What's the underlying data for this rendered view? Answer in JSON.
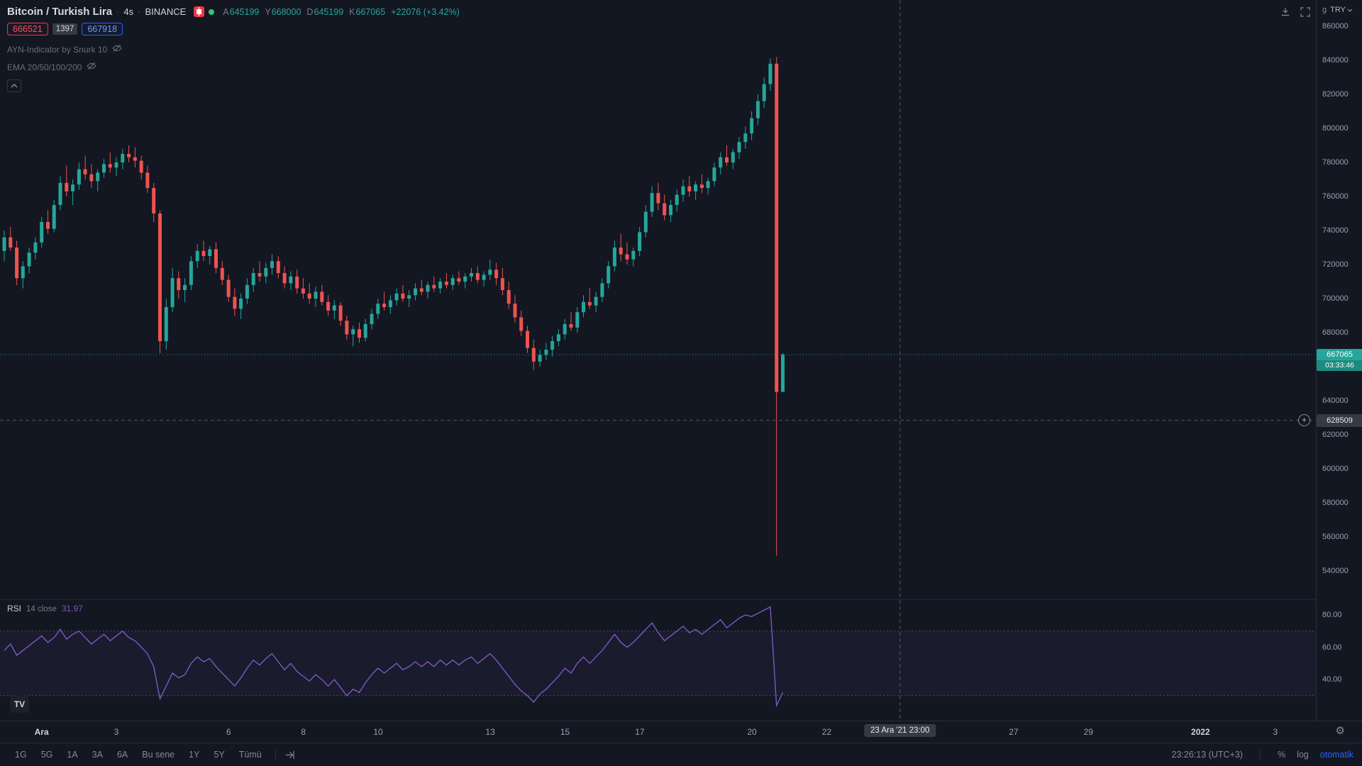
{
  "colors": {
    "up": "#26a69a",
    "down": "#ef5350",
    "rsi_line": "#7e57c2",
    "accent_blue": "#2962ff",
    "sell_red": "#f23645",
    "crosshair": "#9598a1",
    "label_bg": "#363a45"
  },
  "header": {
    "symbol": "Bitcoin / Turkish Lira",
    "separator": "·",
    "interval": "4s",
    "exchange": "BINANCE",
    "ohlc": [
      {
        "label": "A",
        "value": "645199"
      },
      {
        "label": "Y",
        "value": "668000"
      },
      {
        "label": "D",
        "value": "645199"
      },
      {
        "label": "K",
        "value": "667065"
      }
    ],
    "change": "+22076 (+3.42%)",
    "sell_price": "666521",
    "spread": "1397",
    "buy_price": "667918",
    "indicators": [
      {
        "name": "AYN-Indicator by Snurk 10"
      },
      {
        "name": "EMA 20/50/100/200"
      }
    ]
  },
  "rsi_pane": {
    "title": "RSI",
    "params": "14 close",
    "value": "31.97",
    "ticks": [
      {
        "label": "80.00",
        "value": 80
      },
      {
        "label": "60.00",
        "value": 60
      },
      {
        "label": "40.00",
        "value": 40
      }
    ]
  },
  "price_scale": {
    "unit": "g",
    "currency": "TRY",
    "ticks": [
      860000,
      840000,
      820000,
      800000,
      780000,
      760000,
      740000,
      720000,
      700000,
      680000,
      640000,
      620000,
      600000,
      580000,
      560000,
      540000
    ],
    "last_price_label": "667065",
    "countdown": "03:33:46",
    "crosshair_price": "628509"
  },
  "time_axis": {
    "labels": [
      {
        "text": "Ara",
        "day": 1,
        "strong": true
      },
      {
        "text": "3",
        "day": 3
      },
      {
        "text": "6",
        "day": 6
      },
      {
        "text": "8",
        "day": 8
      },
      {
        "text": "10",
        "day": 10
      },
      {
        "text": "13",
        "day": 13
      },
      {
        "text": "15",
        "day": 15
      },
      {
        "text": "17",
        "day": 17
      },
      {
        "text": "20",
        "day": 20
      },
      {
        "text": "22",
        "day": 22
      },
      {
        "text": "27",
        "day": 27
      },
      {
        "text": "29",
        "day": 29
      },
      {
        "text": "2022",
        "day": 32,
        "strong": true
      },
      {
        "text": "3",
        "day": 34
      }
    ],
    "crosshair_time": "23 Ara '21  23:00"
  },
  "toolbar": {
    "ranges": [
      "1G",
      "5G",
      "1A",
      "3A",
      "6A",
      "Bu sene",
      "1Y",
      "5Y",
      "Tümü"
    ],
    "clock": "23:26:13 (UTC+3)",
    "percent_label": "%",
    "log_label": "log",
    "auto_label": "otomatik"
  },
  "branding": {
    "logo_text": "TV"
  },
  "icons": {
    "plus": "+",
    "gear": "⚙"
  },
  "chart_data": {
    "type": "candlestick",
    "title": "Bitcoin / Turkish Lira, 4h, BINANCE",
    "interval": "4h",
    "first_candle_time": "2021-11-30 00:00",
    "price_ylim": [
      523000,
      875500
    ],
    "rsi_ylim": [
      14.5,
      89.7
    ],
    "grid": false,
    "last_price": 667065,
    "rsi_bands": [
      70,
      30
    ],
    "crosshair": {
      "day": 23.96,
      "price": 628509
    },
    "candles": [
      [
        728000,
        740000,
        722000,
        736000
      ],
      [
        736000,
        742000,
        728000,
        730000
      ],
      [
        730000,
        734000,
        708000,
        712000
      ],
      [
        712000,
        722000,
        706000,
        719000
      ],
      [
        719000,
        730000,
        715000,
        727000
      ],
      [
        727000,
        736000,
        723000,
        733000
      ],
      [
        733000,
        748000,
        730000,
        745000
      ],
      [
        745000,
        752000,
        738000,
        741000
      ],
      [
        741000,
        758000,
        739000,
        755000
      ],
      [
        755000,
        772000,
        752000,
        768000
      ],
      [
        768000,
        778000,
        760000,
        763000
      ],
      [
        763000,
        770000,
        755000,
        767000
      ],
      [
        767000,
        780000,
        764000,
        776000
      ],
      [
        776000,
        784000,
        770000,
        773000
      ],
      [
        773000,
        779000,
        765000,
        769000
      ],
      [
        769000,
        776000,
        763000,
        774000
      ],
      [
        774000,
        782000,
        771000,
        779000
      ],
      [
        779000,
        786000,
        774000,
        777000
      ],
      [
        777000,
        783000,
        772000,
        780000
      ],
      [
        780000,
        788000,
        776000,
        785000
      ],
      [
        785000,
        790000,
        780000,
        783000
      ],
      [
        783000,
        789000,
        777000,
        781000
      ],
      [
        781000,
        784000,
        770000,
        774000
      ],
      [
        774000,
        778000,
        762000,
        765000
      ],
      [
        765000,
        768000,
        745000,
        750000
      ],
      [
        750000,
        752000,
        668000,
        675000
      ],
      [
        675000,
        700000,
        670000,
        695000
      ],
      [
        695000,
        718000,
        692000,
        712000
      ],
      [
        712000,
        716000,
        700000,
        705000
      ],
      [
        705000,
        712000,
        698000,
        708000
      ],
      [
        708000,
        725000,
        705000,
        722000
      ],
      [
        722000,
        732000,
        718000,
        728000
      ],
      [
        728000,
        734000,
        722000,
        725000
      ],
      [
        725000,
        731000,
        720000,
        729000
      ],
      [
        729000,
        733000,
        715000,
        718000
      ],
      [
        718000,
        722000,
        708000,
        711000
      ],
      [
        711000,
        714000,
        698000,
        701000
      ],
      [
        701000,
        706000,
        690000,
        694000
      ],
      [
        694000,
        703000,
        688000,
        700000
      ],
      [
        700000,
        712000,
        697000,
        708000
      ],
      [
        708000,
        718000,
        704000,
        715000
      ],
      [
        715000,
        722000,
        710000,
        713000
      ],
      [
        713000,
        721000,
        709000,
        718000
      ],
      [
        718000,
        726000,
        714000,
        722000
      ],
      [
        722000,
        725000,
        712000,
        715000
      ],
      [
        715000,
        719000,
        706000,
        709000
      ],
      [
        709000,
        716000,
        705000,
        713000
      ],
      [
        713000,
        717000,
        703000,
        706000
      ],
      [
        706000,
        712000,
        700000,
        703000
      ],
      [
        703000,
        709000,
        697000,
        700000
      ],
      [
        700000,
        707000,
        695000,
        704000
      ],
      [
        704000,
        708000,
        696000,
        698000
      ],
      [
        698000,
        702000,
        690000,
        693000
      ],
      [
        693000,
        699000,
        688000,
        696000
      ],
      [
        696000,
        698000,
        684000,
        687000
      ],
      [
        687000,
        690000,
        676000,
        679000
      ],
      [
        679000,
        684000,
        672000,
        682000
      ],
      [
        682000,
        686000,
        674000,
        677000
      ],
      [
        677000,
        688000,
        675000,
        685000
      ],
      [
        685000,
        694000,
        682000,
        691000
      ],
      [
        691000,
        700000,
        688000,
        697000
      ],
      [
        697000,
        704000,
        693000,
        695000
      ],
      [
        695000,
        702000,
        691000,
        699000
      ],
      [
        699000,
        706000,
        696000,
        703000
      ],
      [
        703000,
        708000,
        698000,
        700000
      ],
      [
        700000,
        705000,
        695000,
        702000
      ],
      [
        702000,
        709000,
        699000,
        706000
      ],
      [
        706000,
        711000,
        702000,
        704000
      ],
      [
        704000,
        710000,
        700000,
        708000
      ],
      [
        708000,
        713000,
        704000,
        706000
      ],
      [
        706000,
        712000,
        703000,
        710000
      ],
      [
        710000,
        715000,
        706000,
        708000
      ],
      [
        708000,
        714000,
        705000,
        712000
      ],
      [
        712000,
        716000,
        708000,
        710000
      ],
      [
        710000,
        715000,
        706000,
        713000
      ],
      [
        713000,
        718000,
        710000,
        715000
      ],
      [
        715000,
        719000,
        709000,
        711000
      ],
      [
        711000,
        716000,
        707000,
        714000
      ],
      [
        714000,
        723000,
        711000,
        717000
      ],
      [
        717000,
        721000,
        708000,
        712000
      ],
      [
        712000,
        718000,
        702000,
        705000
      ],
      [
        705000,
        710000,
        694000,
        697000
      ],
      [
        697000,
        702000,
        686000,
        689000
      ],
      [
        689000,
        693000,
        678000,
        681000
      ],
      [
        681000,
        684000,
        668000,
        671000
      ],
      [
        671000,
        676000,
        658000,
        663000
      ],
      [
        663000,
        670000,
        660000,
        667000
      ],
      [
        667000,
        674000,
        664000,
        670000
      ],
      [
        670000,
        678000,
        666000,
        675000
      ],
      [
        675000,
        682000,
        672000,
        679000
      ],
      [
        679000,
        688000,
        676000,
        685000
      ],
      [
        685000,
        692000,
        681000,
        683000
      ],
      [
        683000,
        695000,
        680000,
        692000
      ],
      [
        692000,
        702000,
        689000,
        698000
      ],
      [
        698000,
        706000,
        694000,
        696000
      ],
      [
        696000,
        704000,
        692000,
        701000
      ],
      [
        701000,
        712000,
        698000,
        709000
      ],
      [
        709000,
        722000,
        706000,
        719000
      ],
      [
        719000,
        734000,
        716000,
        730000
      ],
      [
        730000,
        738000,
        722000,
        726000
      ],
      [
        726000,
        733000,
        720000,
        723000
      ],
      [
        723000,
        730000,
        719000,
        728000
      ],
      [
        728000,
        742000,
        725000,
        739000
      ],
      [
        739000,
        755000,
        736000,
        751000
      ],
      [
        751000,
        766000,
        748000,
        762000
      ],
      [
        762000,
        768000,
        752000,
        756000
      ],
      [
        756000,
        761000,
        746000,
        749000
      ],
      [
        749000,
        758000,
        745000,
        755000
      ],
      [
        755000,
        764000,
        751000,
        761000
      ],
      [
        761000,
        770000,
        757000,
        766000
      ],
      [
        766000,
        772000,
        760000,
        763000
      ],
      [
        763000,
        769000,
        758000,
        767000
      ],
      [
        767000,
        773000,
        762000,
        765000
      ],
      [
        765000,
        771000,
        761000,
        769000
      ],
      [
        769000,
        780000,
        766000,
        777000
      ],
      [
        777000,
        786000,
        773000,
        783000
      ],
      [
        783000,
        790000,
        778000,
        780000
      ],
      [
        780000,
        788000,
        776000,
        786000
      ],
      [
        786000,
        795000,
        782000,
        792000
      ],
      [
        792000,
        801000,
        788000,
        797000
      ],
      [
        797000,
        810000,
        793000,
        806000
      ],
      [
        806000,
        820000,
        802000,
        816000
      ],
      [
        816000,
        830000,
        812000,
        826000
      ],
      [
        826000,
        841000,
        822000,
        838000
      ],
      [
        838000,
        842000,
        549000,
        645199
      ],
      [
        645199,
        668000,
        645199,
        667065
      ]
    ],
    "rsi_period": 14,
    "rsi_values": [
      58,
      62,
      55,
      58,
      61,
      64,
      67,
      63,
      66,
      71,
      65,
      68,
      70,
      66,
      62,
      65,
      68,
      64,
      67,
      70,
      66,
      64,
      60,
      56,
      48,
      28,
      36,
      44,
      41,
      43,
      50,
      54,
      51,
      53,
      48,
      44,
      40,
      36,
      41,
      47,
      52,
      49,
      53,
      56,
      51,
      46,
      50,
      45,
      42,
      39,
      43,
      40,
      36,
      40,
      35,
      30,
      34,
      32,
      38,
      43,
      47,
      44,
      47,
      50,
      46,
      48,
      51,
      48,
      51,
      48,
      52,
      49,
      52,
      49,
      52,
      54,
      50,
      53,
      56,
      52,
      47,
      42,
      37,
      33,
      30,
      26,
      31,
      34,
      38,
      42,
      47,
      44,
      50,
      54,
      50,
      54,
      58,
      63,
      68,
      63,
      60,
      63,
      67,
      71,
      75,
      69,
      64,
      67,
      70,
      73,
      69,
      71,
      68,
      71,
      74,
      77,
      72,
      75,
      78,
      80,
      79,
      81,
      83,
      85,
      24,
      31.97
    ]
  }
}
